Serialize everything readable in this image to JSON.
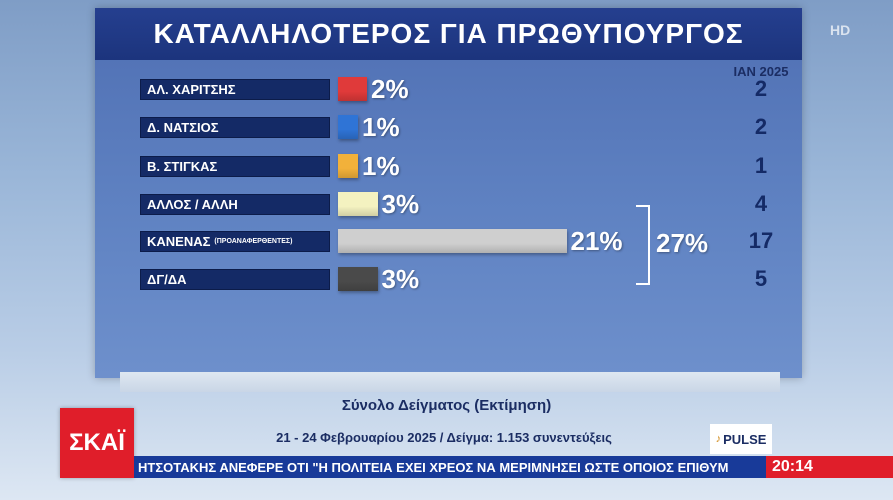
{
  "title": "ΚΑΤΑΛΛΗΛΟΤΕΡΟΣ ΓΙΑ ΠΡΩΘΥΠΟΥΡΓΟΣ",
  "hd_badge": "HD",
  "chart_data": {
    "type": "bar",
    "title": "ΚΑΤΑΛΛΗΛΟΤΕΡΟΣ ΓΙΑ ΠΡΩΘΥΠΟΥΡΓΟΣ",
    "categories": [
      "ΑΛ. ΧΑΡΙΤΣΗΣ",
      "Δ. ΝΑΤΣΙΟΣ",
      "Β. ΣΤΙΓΚΑΣ",
      "ΑΛΛΟΣ / ΑΛΛΗ",
      "ΚΑΝΕΝΑΣ",
      "ΔΓ/ΔΑ"
    ],
    "category_sublabels": [
      "",
      "",
      "",
      "",
      "(ΠΡΟΑΝΑΦΕΡΘΕΝΤΕΣ)",
      ""
    ],
    "values": [
      2,
      1,
      1,
      3,
      21,
      3
    ],
    "value_labels": [
      "2%",
      "1%",
      "1%",
      "3%",
      "21%",
      "3%"
    ],
    "colors": [
      "#e03a3a",
      "#2f74d6",
      "#f2b13a",
      "#f4f2c0",
      "#cfcfcf",
      "#4a4a4a"
    ],
    "comparison": {
      "header": "ΙΑΝ 2025",
      "values": [
        "2",
        "2",
        "1",
        "4",
        "17",
        "5"
      ]
    },
    "group_total": {
      "rows": [
        3,
        4,
        5
      ],
      "label": "27%"
    }
  },
  "footer": {
    "line1": "Σύνολο Δείγματος (Εκτίμηση)",
    "line2": "21 - 24 Φεβρουαρίου 2025 / Δείγμα: 1.153 συνεντεύξεις"
  },
  "branding": {
    "channel_logo": "ΣΚΑΪ",
    "pollster_logo": "PULSE",
    "channel_color": "#e01e2a"
  },
  "ticker": {
    "text": "ΗΤΣΟΤΑΚΗΣ ΑΝΕΦΕΡΕ ΟΤΙ \"Η ΠΟΛΙΤΕΙΑ ΕΧΕΙ ΧΡΕΟΣ ΝΑ ΜΕΡΙΜΝΗΣΕΙ ΩΣΤΕ ΟΠΟΙΟΣ ΕΠΙΘΥΜ",
    "time": "20:14"
  }
}
